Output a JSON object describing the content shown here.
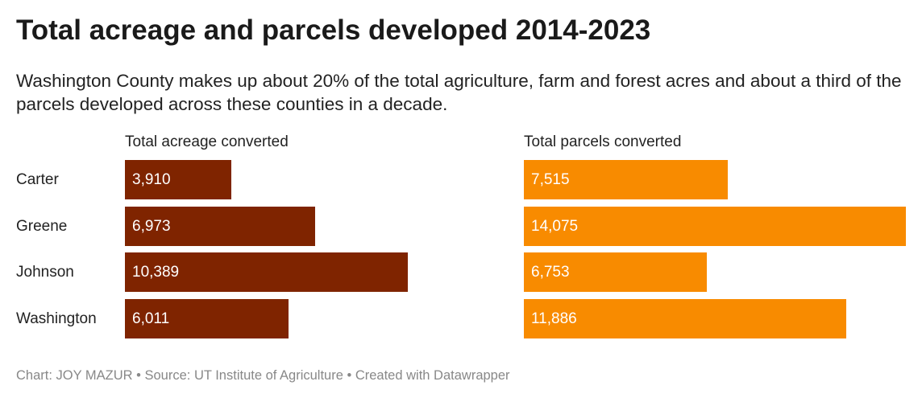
{
  "chart_data": {
    "type": "bar",
    "title": "Total acreage and parcels developed 2014-2023",
    "subtitle": "Washington County makes up about 20% of the total agriculture, farm and forest acres and about a third of the parcels developed across these counties in a decade.",
    "categories": [
      "Carter",
      "Greene",
      "Johnson",
      "Washington"
    ],
    "series": [
      {
        "name": "Total acreage converted",
        "values": [
          3910,
          6973,
          10389,
          6011
        ],
        "labels": [
          "3,910",
          "6,973",
          "10,389",
          "6,011"
        ],
        "color": "#7f2400"
      },
      {
        "name": "Total parcels converted",
        "values": [
          7515,
          14075,
          6753,
          11886
        ],
        "labels": [
          "7,515",
          "14,075",
          "6,753",
          "11,886"
        ],
        "color": "#f88b00"
      }
    ],
    "grid": false
  },
  "footer": "Chart: JOY MAZUR • Source: UT Institute of Agriculture • Created with Datawrapper"
}
